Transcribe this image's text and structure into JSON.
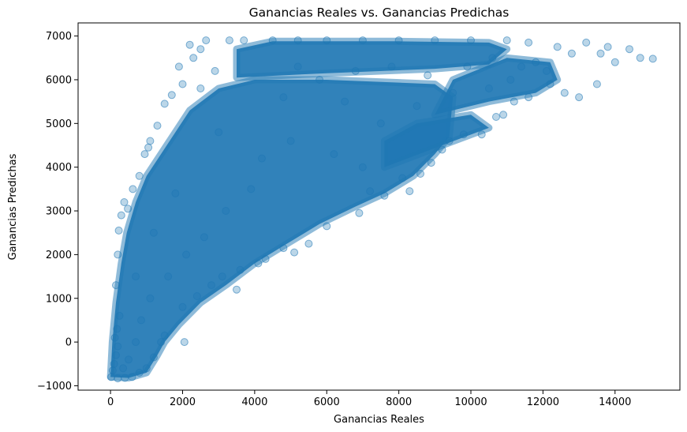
{
  "chart_data": {
    "type": "scatter",
    "title": "Ganancias Reales vs. Ganancias Predichas",
    "xlabel": "Ganancias Reales",
    "ylabel": "Ganancias Predichas",
    "xlim": [
      -900,
      15800
    ],
    "ylim": [
      -1100,
      7300
    ],
    "xticks": [
      0,
      2000,
      4000,
      6000,
      8000,
      10000,
      12000,
      14000
    ],
    "yticks": [
      -1000,
      0,
      1000,
      2000,
      3000,
      4000,
      5000,
      6000,
      7000
    ],
    "xtick_labels": [
      "0",
      "2000",
      "4000",
      "6000",
      "8000",
      "10000",
      "12000",
      "14000"
    ],
    "ytick_labels": [
      "−1000",
      "0",
      "1000",
      "2000",
      "3000",
      "4000",
      "5000",
      "6000",
      "7000"
    ],
    "grid": false,
    "legend": "none",
    "marker_color": "#1f77b4",
    "marker_alpha": 0.3,
    "points": [
      [
        20,
        -800
      ],
      [
        60,
        -650
      ],
      [
        100,
        -500
      ],
      [
        150,
        -300
      ],
      [
        200,
        -100
      ],
      [
        120,
        100
      ],
      [
        180,
        300
      ],
      [
        250,
        600
      ],
      [
        150,
        1300
      ],
      [
        200,
        2000
      ],
      [
        230,
        2550
      ],
      [
        300,
        2900
      ],
      [
        380,
        3200
      ],
      [
        480,
        3050
      ],
      [
        620,
        3500
      ],
      [
        800,
        3800
      ],
      [
        950,
        4300
      ],
      [
        1050,
        4450
      ],
      [
        1100,
        4600
      ],
      [
        1300,
        4950
      ],
      [
        1500,
        5450
      ],
      [
        1700,
        5650
      ],
      [
        2000,
        5900
      ],
      [
        1900,
        6300
      ],
      [
        2300,
        6500
      ],
      [
        2500,
        6700
      ],
      [
        2650,
        6900
      ],
      [
        3300,
        6900
      ],
      [
        3700,
        6900
      ],
      [
        4500,
        6900
      ],
      [
        5200,
        6900
      ],
      [
        6000,
        6900
      ],
      [
        7000,
        6900
      ],
      [
        8000,
        6900
      ],
      [
        9000,
        6900
      ],
      [
        10000,
        6900
      ],
      [
        11000,
        6900
      ],
      [
        11600,
        6850
      ],
      [
        12400,
        6750
      ],
      [
        13200,
        6850
      ],
      [
        13800,
        6750
      ],
      [
        14400,
        6700
      ],
      [
        14700,
        6500
      ],
      [
        15050,
        6480
      ],
      [
        14000,
        6400
      ],
      [
        13500,
        5900
      ],
      [
        13000,
        5600
      ],
      [
        12600,
        5700
      ],
      [
        12200,
        5900
      ],
      [
        11600,
        5600
      ],
      [
        11200,
        5500
      ],
      [
        11100,
        6000
      ],
      [
        10900,
        5200
      ],
      [
        10700,
        5150
      ],
      [
        10300,
        4750
      ],
      [
        9800,
        4750
      ],
      [
        9400,
        4600
      ],
      [
        9200,
        4400
      ],
      [
        8900,
        4100
      ],
      [
        8600,
        3850
      ],
      [
        8300,
        3450
      ],
      [
        8100,
        3750
      ],
      [
        7600,
        3350
      ],
      [
        7200,
        3450
      ],
      [
        6900,
        2950
      ],
      [
        6000,
        2650
      ],
      [
        5500,
        2250
      ],
      [
        5100,
        2050
      ],
      [
        4800,
        2150
      ],
      [
        4300,
        1900
      ],
      [
        4100,
        1800
      ],
      [
        3600,
        1650
      ],
      [
        3100,
        1500
      ],
      [
        2800,
        1300
      ],
      [
        2400,
        1050
      ],
      [
        2000,
        800
      ],
      [
        1500,
        150
      ],
      [
        1400,
        0
      ],
      [
        1200,
        -350
      ],
      [
        1000,
        -600
      ],
      [
        800,
        -700
      ],
      [
        600,
        -800
      ],
      [
        400,
        -820
      ],
      [
        200,
        -830
      ],
      [
        3500,
        1200
      ],
      [
        2050,
        0
      ],
      [
        2200,
        6800
      ],
      [
        2900,
        6200
      ],
      [
        2500,
        5800
      ],
      [
        3000,
        4800
      ],
      [
        1800,
        3400
      ],
      [
        1200,
        2500
      ],
      [
        700,
        1500
      ],
      [
        5200,
        6300
      ],
      [
        6500,
        5500
      ],
      [
        7500,
        5000
      ],
      [
        8500,
        5400
      ],
      [
        9500,
        5700
      ],
      [
        10500,
        5800
      ],
      [
        11800,
        6400
      ],
      [
        12800,
        6600
      ],
      [
        13600,
        6600
      ],
      [
        4200,
        4200
      ],
      [
        5000,
        4600
      ],
      [
        6200,
        4300
      ],
      [
        7000,
        4000
      ],
      [
        3900,
        3500
      ],
      [
        3200,
        3000
      ],
      [
        2600,
        2400
      ],
      [
        2100,
        2000
      ],
      [
        1600,
        1500
      ],
      [
        1100,
        1000
      ],
      [
        850,
        500
      ],
      [
        700,
        0
      ],
      [
        500,
        -400
      ],
      [
        350,
        -600
      ],
      [
        4800,
        5600
      ],
      [
        5800,
        6000
      ],
      [
        6800,
        6200
      ],
      [
        7800,
        6300
      ],
      [
        8800,
        6100
      ],
      [
        9900,
        6300
      ],
      [
        10600,
        6500
      ],
      [
        11400,
        6300
      ],
      [
        12100,
        6200
      ]
    ]
  }
}
